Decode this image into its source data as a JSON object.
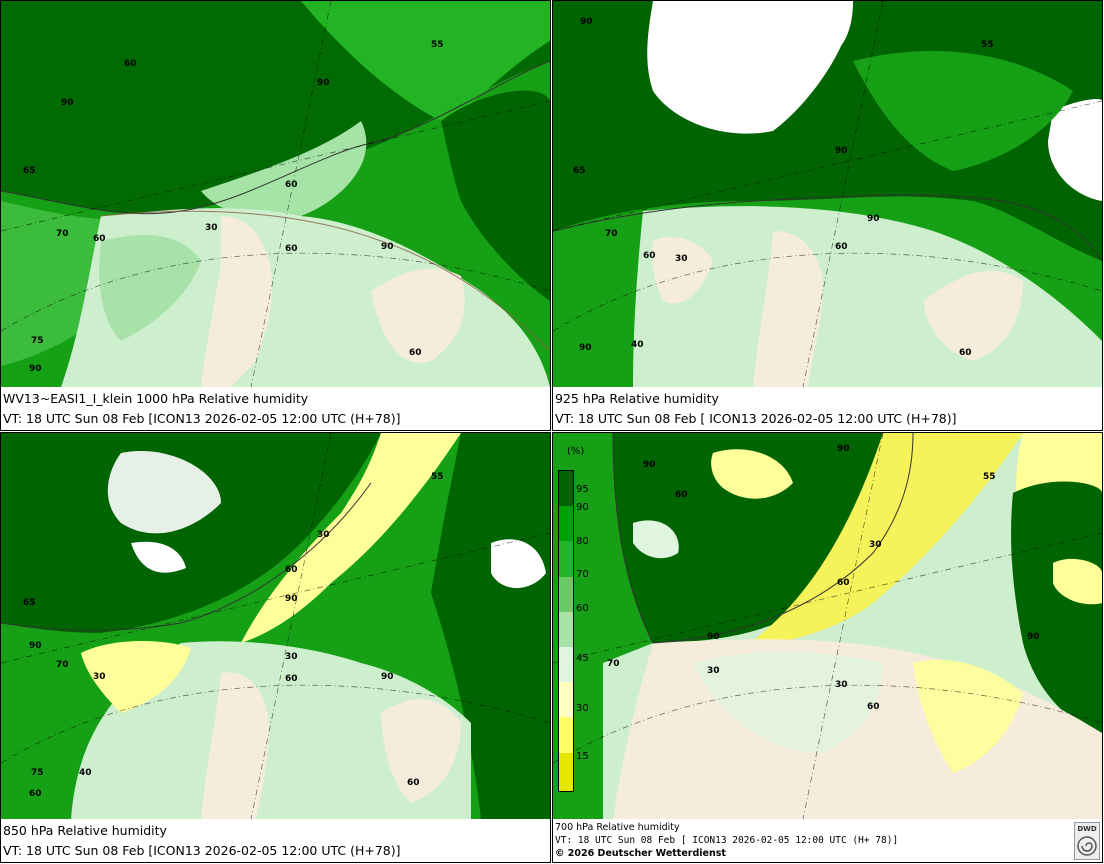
{
  "panels": [
    {
      "level": "1000",
      "line1": "WV13~EASI1_I_klein 1000 hPa Relative humidity",
      "line2": "VT: 18 UTC Sun  08 Feb [ICON13 2026-02-05 12:00 UTC  (H+78)]",
      "labels": [
        "60",
        "90",
        "65",
        "70",
        "60",
        "55",
        "90",
        "60",
        "30",
        "60",
        "90",
        "75",
        "90",
        "60"
      ]
    },
    {
      "level": "925",
      "line1": "925 hPa Relative humidity",
      "line2": "VT: 18 UTC Sun  08 Feb [ ICON13 2026-02-05 12:00 UTC  (H+78)]",
      "labels": [
        "90",
        "55",
        "65",
        "90",
        "90",
        "70",
        "60",
        "30",
        "60",
        "90",
        "40",
        "60"
      ]
    },
    {
      "level": "850",
      "line1": "850 hPa  Relative humidity",
      "line2": "VT: 18 UTC Sun  08 Feb [ICON13 2026-02-05 12:00 UTC  (H+78)]",
      "labels": [
        "55",
        "30",
        "65",
        "60",
        "90",
        "90",
        "70",
        "30",
        "30",
        "60",
        "90",
        "75",
        "60",
        "40",
        "60"
      ]
    },
    {
      "level": "700",
      "line1": "700 hPa Relative humidity",
      "line2": "VT: 18 UTC Sun  08 Feb [ ICON13 2026-02-05 12:00 UTC  (H+ 78)]",
      "line3": "© 2026 Deutscher Wetterdienst",
      "labels": [
        "90",
        "60",
        "90",
        "55",
        "30",
        "60",
        "90",
        "70",
        "30",
        "30",
        "60",
        "90"
      ]
    }
  ],
  "legend": {
    "unit": "(%)",
    "ticks": [
      "95",
      "90",
      "80",
      "70",
      "60",
      "45",
      "30",
      "15"
    ],
    "colors": [
      "#006400",
      "#00a000",
      "#22b422",
      "#66cc66",
      "#a6e3a6",
      "#dff5df",
      "#ffffc0",
      "#ffff66",
      "#f2f200",
      "#e6e600"
    ]
  },
  "colors": {
    "dark_green": "#006400",
    "green": "#16a016",
    "mid_green": "#3cbc3c",
    "light_green": "#99dd99",
    "pale_green": "#cdefcd",
    "land_pale": "#f5ecdc",
    "yellow": "#ffff99",
    "bright_yellow": "#f6f25a"
  },
  "logo": {
    "text": "DWD"
  }
}
